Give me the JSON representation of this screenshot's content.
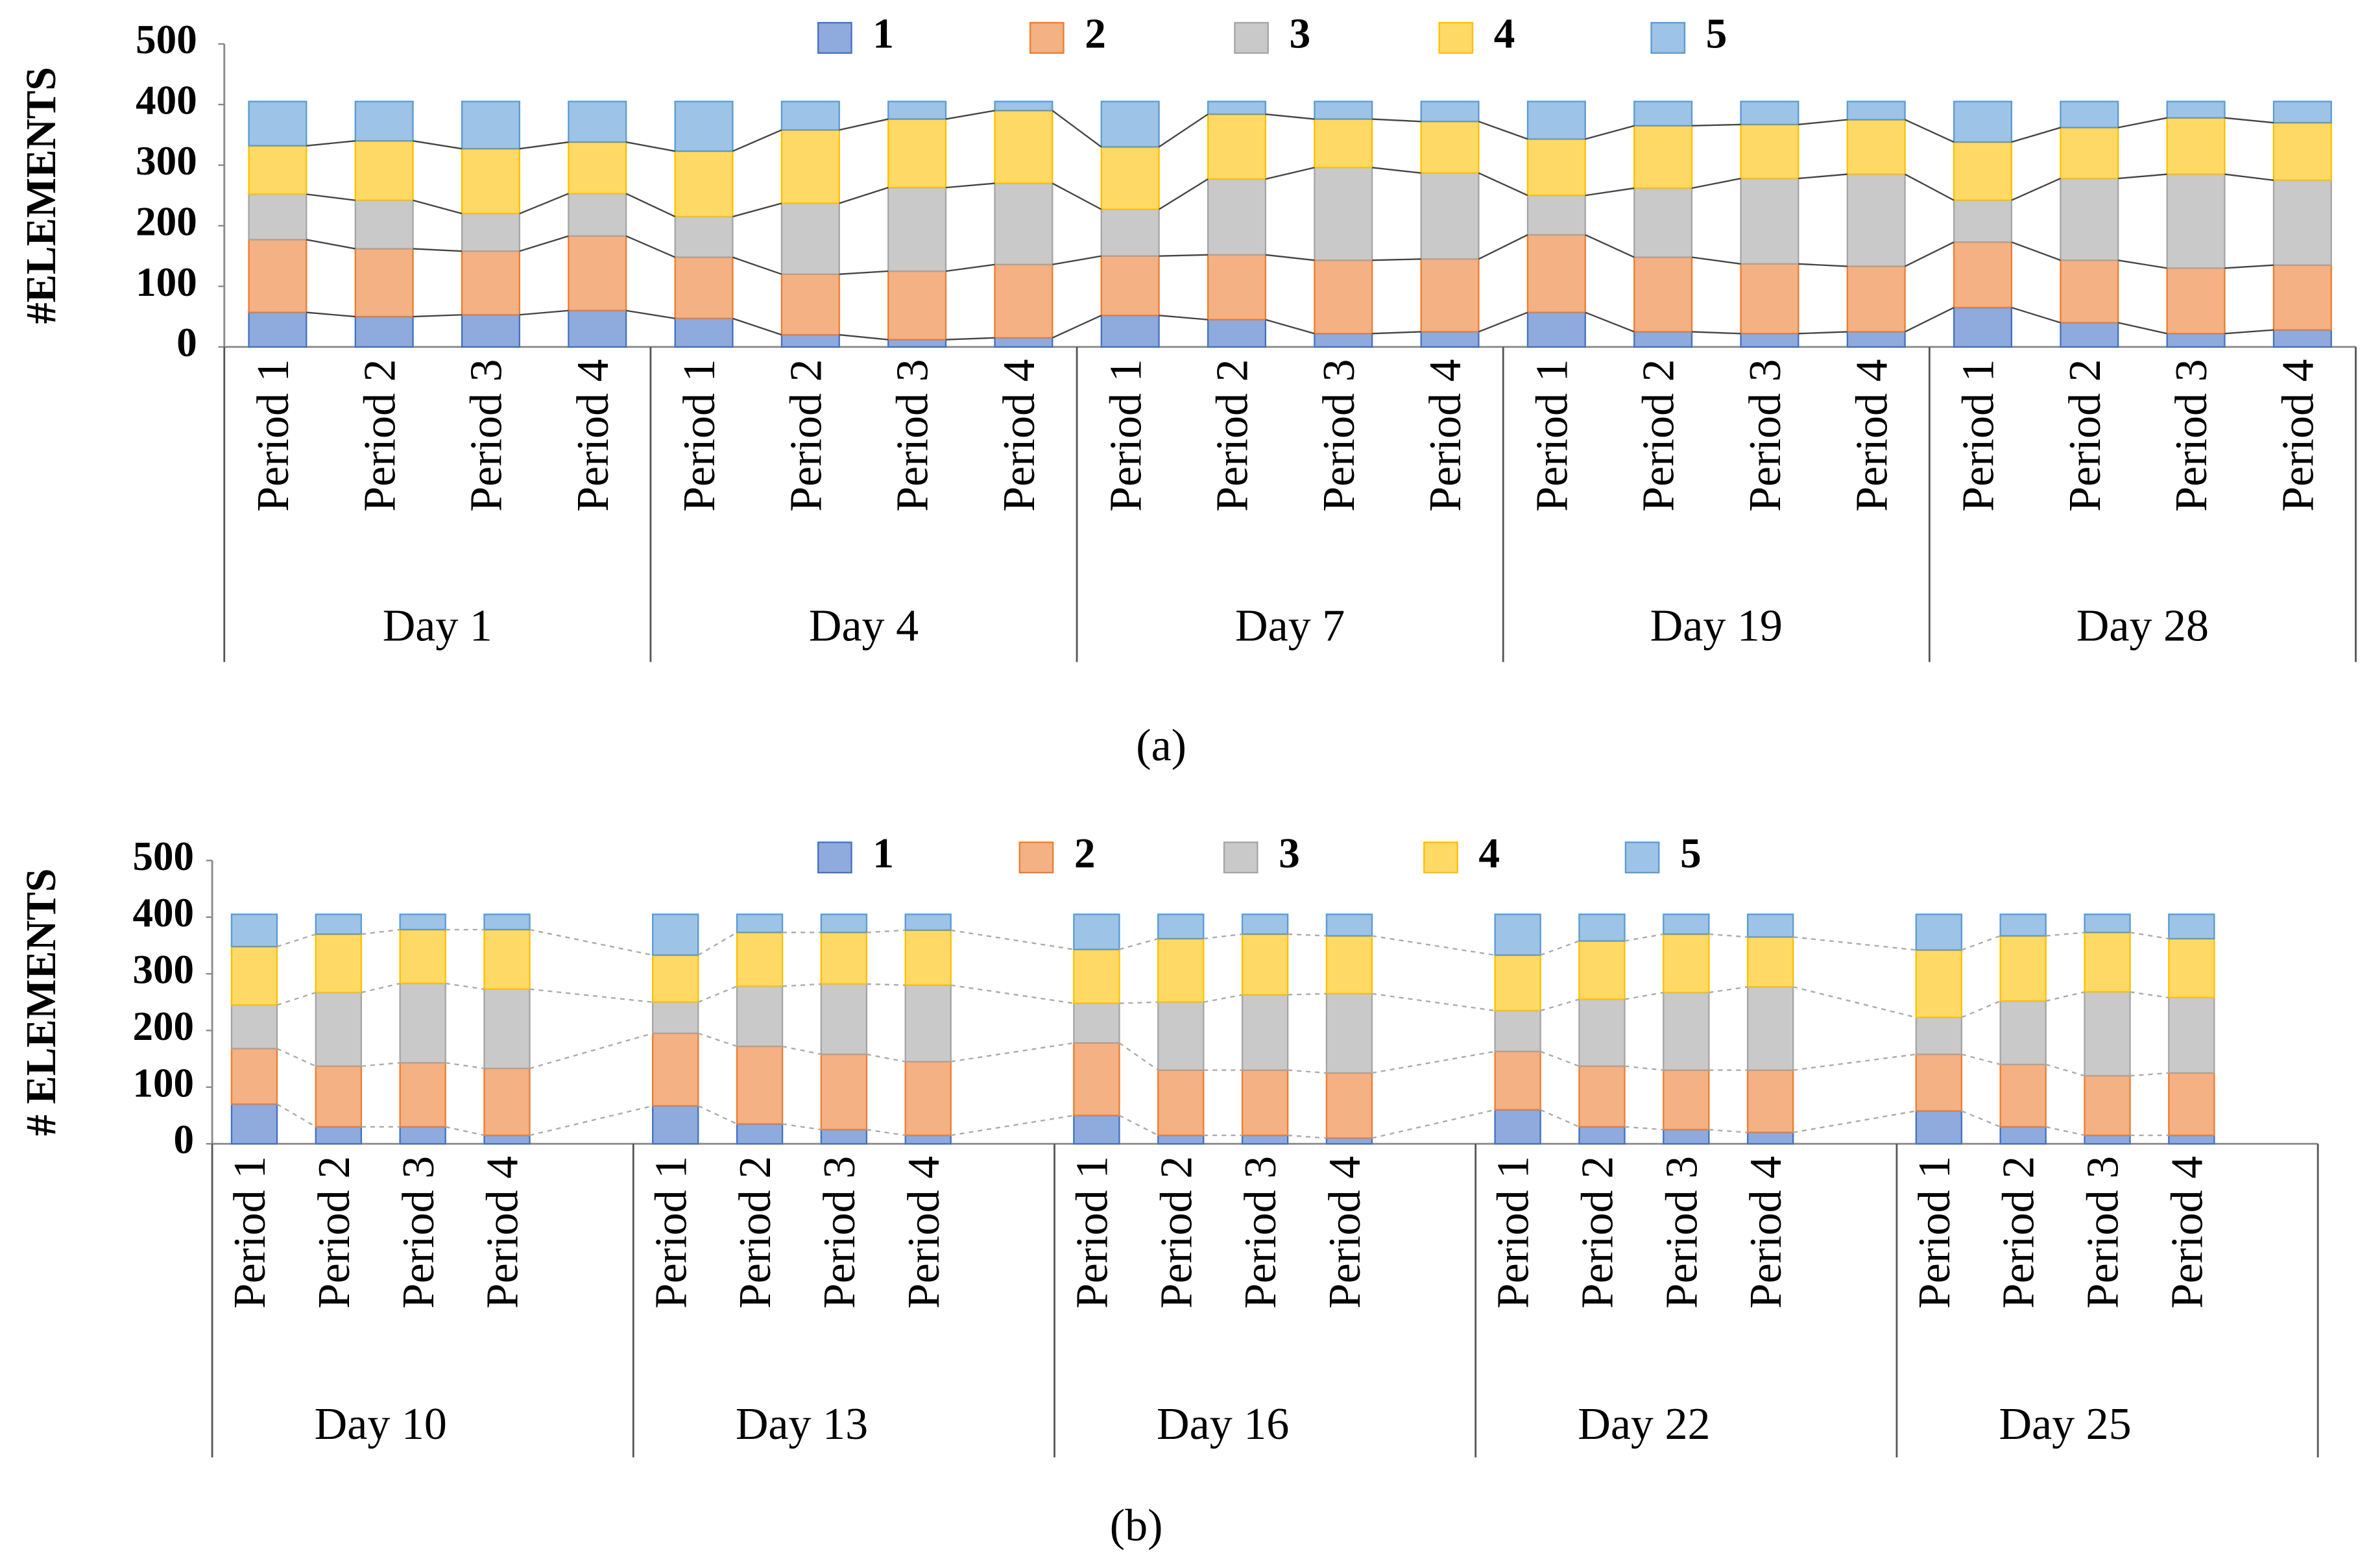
{
  "chart_data": [
    {
      "type": "bar",
      "stacked": true,
      "series_lines": "solid",
      "y_label": "#ELEMENTS",
      "caption": "(a)",
      "categories": [
        "Period 1",
        "Period 2",
        "Period 3",
        "Period 4",
        "Period 1",
        "Period 2",
        "Period 3",
        "Period 4",
        "Period 1",
        "Period 2",
        "Period 3",
        "Period 4",
        "Period 1",
        "Period 2",
        "Period 3",
        "Period 4",
        "Period 1",
        "Period 2",
        "Period 3",
        "Period 4"
      ],
      "groups": [
        "Day 1",
        "Day 4",
        "Day 7",
        "Day 19",
        "Day 28"
      ],
      "ylim": [
        0,
        500
      ],
      "yticks": [
        0,
        100,
        200,
        300,
        400,
        500
      ],
      "series": [
        {
          "name": "1",
          "color": "#8faadc",
          "values": [
            57,
            50,
            53,
            60,
            47,
            20,
            12,
            15,
            52,
            45,
            22,
            25,
            57,
            25,
            22,
            25,
            65,
            40,
            22,
            28
          ]
        },
        {
          "name": "2",
          "color": "#f4b183",
          "values": [
            120,
            112,
            105,
            123,
            101,
            100,
            113,
            121,
            98,
            107,
            121,
            120,
            128,
            123,
            115,
            108,
            108,
            103,
            108,
            107
          ]
        },
        {
          "name": "3",
          "color": "#c9c9c9",
          "values": [
            75,
            80,
            62,
            70,
            67,
            117,
            138,
            134,
            77,
            125,
            153,
            142,
            65,
            114,
            141,
            152,
            69,
            135,
            155,
            140
          ]
        },
        {
          "name": "4",
          "color": "#ffd966",
          "values": [
            80,
            98,
            107,
            85,
            108,
            121,
            113,
            120,
            103,
            107,
            80,
            85,
            93,
            103,
            89,
            90,
            96,
            84,
            93,
            95
          ]
        },
        {
          "name": "5",
          "color": "#9dc3e6",
          "values": [
            73,
            65,
            78,
            67,
            82,
            47,
            29,
            15,
            75,
            21,
            29,
            33,
            62,
            40,
            38,
            30,
            67,
            43,
            27,
            35
          ]
        }
      ]
    },
    {
      "type": "bar",
      "stacked": true,
      "series_lines": "dashed",
      "y_label": "# ELEMENTS",
      "caption": "(b)",
      "categories": [
        "Period 1",
        "Period 2",
        "Period 3",
        "Period 4",
        null,
        "Period 1",
        "Period 2",
        "Period 3",
        "Period 4",
        null,
        "Period 1",
        "Period 2",
        "Period 3",
        "Period 4",
        null,
        "Period 1",
        "Period 2",
        "Period 3",
        "Period 4",
        null,
        "Period 1",
        "Period 2",
        "Period 3",
        "Period 4",
        null
      ],
      "groups": [
        "Day 10",
        "Day 13",
        "Day 16",
        "Day 22",
        "Day 25"
      ],
      "ylim": [
        0,
        500
      ],
      "yticks": [
        0,
        100,
        200,
        300,
        400,
        500
      ],
      "series": [
        {
          "name": "1",
          "color": "#8faadc",
          "values": [
            70,
            30,
            30,
            15,
            null,
            67,
            35,
            25,
            15,
            null,
            50,
            15,
            15,
            10,
            null,
            60,
            30,
            25,
            20,
            null,
            58,
            30,
            15,
            15,
            null
          ]
        },
        {
          "name": "2",
          "color": "#f4b183",
          "values": [
            98,
            107,
            113,
            118,
            null,
            128,
            137,
            133,
            130,
            null,
            128,
            115,
            115,
            115,
            null,
            103,
            107,
            105,
            110,
            null,
            100,
            110,
            105,
            110,
            null
          ]
        },
        {
          "name": "3",
          "color": "#c9c9c9",
          "values": [
            77,
            130,
            140,
            140,
            null,
            55,
            106,
            124,
            135,
            null,
            70,
            120,
            133,
            140,
            null,
            72,
            118,
            137,
            147,
            null,
            65,
            112,
            148,
            133,
            null
          ]
        },
        {
          "name": "4",
          "color": "#ffd966",
          "values": [
            103,
            103,
            95,
            105,
            null,
            83,
            95,
            91,
            97,
            null,
            95,
            112,
            107,
            102,
            null,
            98,
            103,
            103,
            88,
            null,
            119,
            115,
            105,
            104,
            null
          ]
        },
        {
          "name": "5",
          "color": "#9dc3e6",
          "values": [
            57,
            35,
            27,
            27,
            null,
            72,
            32,
            32,
            28,
            null,
            62,
            43,
            35,
            38,
            null,
            72,
            47,
            35,
            40,
            null,
            63,
            38,
            32,
            43,
            null
          ]
        }
      ]
    }
  ]
}
